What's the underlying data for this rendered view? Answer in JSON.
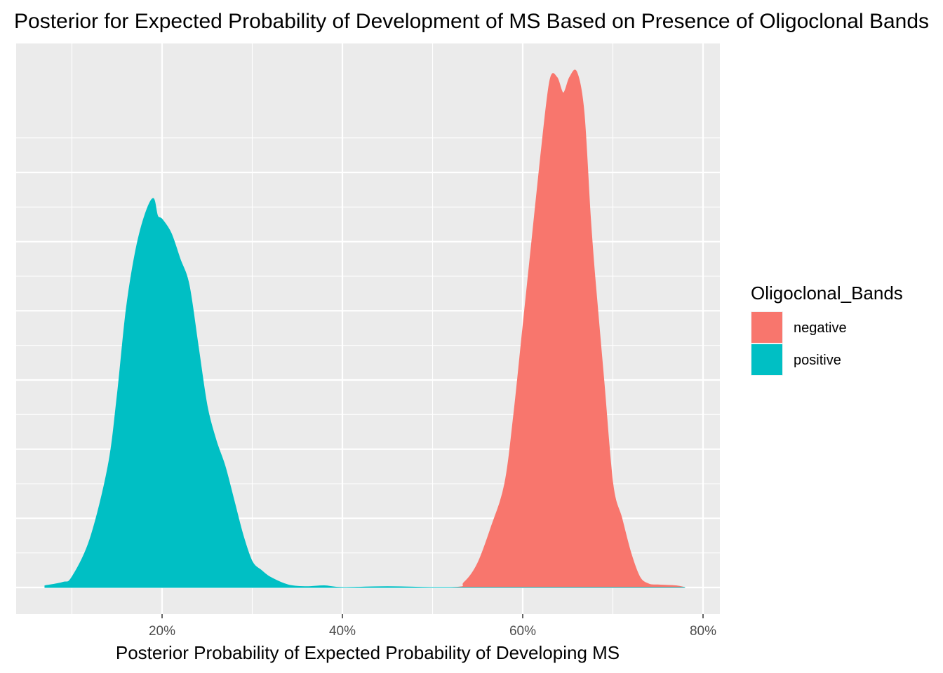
{
  "chart_data": {
    "type": "area",
    "title": "Posterior for Expected Probability of Development of MS Based on Presence of Oligoclonal Bands",
    "xlabel": "Posterior Probability of Expected Probability of Developing MS",
    "ylabel": "",
    "xlim": [
      0.05,
      0.8
    ],
    "ylim": [
      0,
      27.6
    ],
    "x_ticks": [
      0.2,
      0.4,
      0.6,
      0.8
    ],
    "x_tick_labels": [
      "20%",
      "40%",
      "60%",
      "80%"
    ],
    "x_minor_ticks": [
      0.1,
      0.3,
      0.5,
      0.7
    ],
    "y_gridlines": [
      0,
      4,
      8,
      12,
      16,
      20,
      24
    ],
    "y_minor_gridlines": [
      2,
      6,
      10,
      14,
      18,
      22,
      26
    ],
    "grid": true,
    "legend": {
      "title": "Oligoclonal_Bands",
      "placement": "right"
    },
    "series": [
      {
        "name": "negative",
        "color": "#F8766D",
        "x": [
          0.07,
          0.2,
          0.4,
          0.52,
          0.535,
          0.55,
          0.565,
          0.58,
          0.59,
          0.6,
          0.61,
          0.62,
          0.63,
          0.638,
          0.645,
          0.652,
          0.66,
          0.668,
          0.675,
          0.68,
          0.69,
          0.7,
          0.71,
          0.72,
          0.73,
          0.74,
          0.75,
          0.77,
          0.78
        ],
        "y": [
          0,
          0,
          0,
          0,
          0.3,
          1.4,
          3.5,
          6.0,
          10.0,
          15.0,
          20.0,
          25.0,
          29.3,
          29.5,
          28.6,
          29.5,
          29.8,
          27.5,
          21.5,
          18.0,
          12.0,
          6.0,
          4.0,
          2.0,
          0.6,
          0.2,
          0.15,
          0.1,
          0
        ]
      },
      {
        "name": "positive",
        "color": "#00BFC4",
        "x": [
          0.07,
          0.09,
          0.1,
          0.12,
          0.14,
          0.15,
          0.16,
          0.17,
          0.18,
          0.19,
          0.195,
          0.2,
          0.21,
          0.22,
          0.23,
          0.24,
          0.25,
          0.26,
          0.27,
          0.28,
          0.29,
          0.3,
          0.31,
          0.32,
          0.34,
          0.36,
          0.38,
          0.4,
          0.45,
          0.5,
          0.55,
          0.6,
          0.65,
          0.7,
          0.75,
          0.78
        ],
        "y": [
          0.1,
          0.3,
          0.6,
          2.8,
          7.0,
          11.0,
          16.0,
          19.3,
          21.4,
          22.5,
          21.5,
          21.3,
          20.5,
          19.0,
          17.5,
          14.0,
          10.5,
          8.5,
          7.0,
          5.0,
          3.0,
          1.5,
          1.0,
          0.6,
          0.15,
          0.05,
          0.1,
          0.0,
          0.05,
          0,
          0,
          0,
          0,
          0,
          0,
          0
        ]
      }
    ]
  }
}
